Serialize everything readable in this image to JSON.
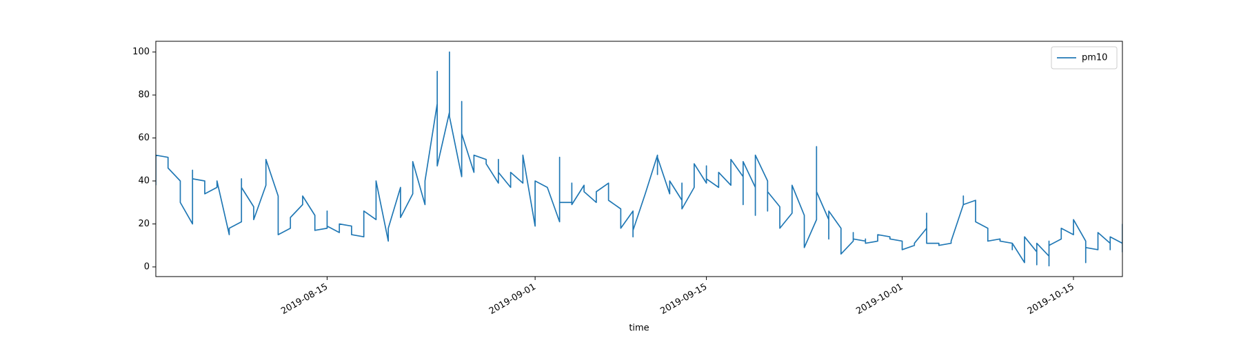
{
  "chart_data": {
    "type": "line",
    "xlabel": "time",
    "x": [
      "2019-08-01",
      "2019-08-01",
      "2019-08-02",
      "2019-08-02",
      "2019-08-03",
      "2019-08-03",
      "2019-08-04",
      "2019-08-04",
      "2019-08-04",
      "2019-08-05",
      "2019-08-05",
      "2019-08-06",
      "2019-08-06",
      "2019-08-07",
      "2019-08-07",
      "2019-08-08",
      "2019-08-08",
      "2019-08-08",
      "2019-08-08",
      "2019-08-09",
      "2019-08-09",
      "2019-08-10",
      "2019-08-10",
      "2019-08-11",
      "2019-08-11",
      "2019-08-12",
      "2019-08-12",
      "2019-08-13",
      "2019-08-13",
      "2019-08-14",
      "2019-08-14",
      "2019-08-15",
      "2019-08-15",
      "2019-08-15",
      "2019-08-16",
      "2019-08-16",
      "2019-08-17",
      "2019-08-17",
      "2019-08-18",
      "2019-08-18",
      "2019-08-19",
      "2019-08-19",
      "2019-08-20",
      "2019-08-20",
      "2019-08-21",
      "2019-08-21",
      "2019-08-22",
      "2019-08-22",
      "2019-08-23",
      "2019-08-23",
      "2019-08-24",
      "2019-08-24",
      "2019-08-24",
      "2019-08-25",
      "2019-08-25",
      "2019-08-25",
      "2019-08-26",
      "2019-08-26",
      "2019-08-26",
      "2019-08-27",
      "2019-08-27",
      "2019-08-28",
      "2019-08-28",
      "2019-08-29",
      "2019-08-29",
      "2019-08-29",
      "2019-08-30",
      "2019-08-30",
      "2019-08-31",
      "2019-08-31",
      "2019-09-01",
      "2019-09-01",
      "2019-09-02",
      "2019-09-03",
      "2019-09-03",
      "2019-09-03",
      "2019-09-04",
      "2019-09-04",
      "2019-09-04",
      "2019-09-05",
      "2019-09-05",
      "2019-09-06",
      "2019-09-06",
      "2019-09-07",
      "2019-09-07",
      "2019-09-08",
      "2019-09-08",
      "2019-09-09",
      "2019-09-09",
      "2019-09-09",
      "2019-09-10",
      "2019-09-11",
      "2019-09-11",
      "2019-09-11",
      "2019-09-12",
      "2019-09-12",
      "2019-09-13",
      "2019-09-13",
      "2019-09-13",
      "2019-09-14",
      "2019-09-14",
      "2019-09-15",
      "2019-09-15",
      "2019-09-15",
      "2019-09-16",
      "2019-09-16",
      "2019-09-17",
      "2019-09-17",
      "2019-09-18",
      "2019-09-18",
      "2019-09-18",
      "2019-09-19",
      "2019-09-19",
      "2019-09-19",
      "2019-09-20",
      "2019-09-20",
      "2019-09-20",
      "2019-09-21",
      "2019-09-21",
      "2019-09-21",
      "2019-09-21",
      "2019-09-22",
      "2019-09-22",
      "2019-09-22",
      "2019-09-23",
      "2019-09-23",
      "2019-09-24",
      "2019-09-24",
      "2019-09-24",
      "2019-09-25",
      "2019-09-25",
      "2019-09-25",
      "2019-09-26",
      "2019-09-26",
      "2019-09-26",
      "2019-09-27",
      "2019-09-27",
      "2019-09-27",
      "2019-09-28",
      "2019-09-28",
      "2019-09-28",
      "2019-09-29",
      "2019-09-29",
      "2019-09-30",
      "2019-09-30",
      "2019-10-01",
      "2019-10-01",
      "2019-10-02",
      "2019-10-02",
      "2019-10-03",
      "2019-10-03",
      "2019-10-03",
      "2019-10-04",
      "2019-10-04",
      "2019-10-04",
      "2019-10-05",
      "2019-10-05",
      "2019-10-05",
      "2019-10-06",
      "2019-10-06",
      "2019-10-06",
      "2019-10-07",
      "2019-10-07",
      "2019-10-08",
      "2019-10-08",
      "2019-10-08",
      "2019-10-09",
      "2019-10-09",
      "2019-10-10",
      "2019-10-10",
      "2019-10-10",
      "2019-10-11",
      "2019-10-11",
      "2019-10-12",
      "2019-10-12",
      "2019-10-12",
      "2019-10-13",
      "2019-10-13",
      "2019-10-13",
      "2019-10-13",
      "2019-10-14",
      "2019-10-14",
      "2019-10-14",
      "2019-10-15",
      "2019-10-15",
      "2019-10-16",
      "2019-10-16",
      "2019-10-16",
      "2019-10-16",
      "2019-10-17",
      "2019-10-17",
      "2019-10-18",
      "2019-10-18",
      "2019-10-18",
      "2019-10-19",
      "2019-10-19",
      "2019-10-19"
    ],
    "series": [
      {
        "name": "pm10",
        "color": "#1f77b4",
        "values": [
          38,
          52,
          51,
          46,
          40,
          30,
          20,
          45,
          41,
          40,
          34,
          37,
          40,
          15,
          18,
          21,
          41,
          30,
          37,
          28,
          22,
          38,
          50,
          33,
          15,
          18,
          23,
          29,
          33,
          24,
          17,
          18,
          26,
          19,
          16,
          20,
          19,
          15,
          14,
          26,
          22,
          40,
          12,
          18,
          37,
          23,
          34,
          49,
          29,
          40,
          76,
          91,
          47,
          72,
          100,
          70,
          42,
          77,
          62,
          44,
          52,
          50,
          48,
          39,
          50,
          44,
          37,
          44,
          39,
          52,
          19,
          40,
          37,
          21,
          51,
          30,
          30,
          39,
          29,
          38,
          35,
          30,
          35,
          39,
          31,
          27,
          18,
          26,
          14,
          17,
          34,
          52,
          43,
          51,
          34,
          40,
          31,
          39,
          27,
          37,
          48,
          39,
          47,
          41,
          37,
          44,
          38,
          50,
          42,
          29,
          49,
          37,
          24,
          52,
          40,
          26,
          35,
          28,
          21,
          26,
          18,
          25,
          27,
          38,
          24,
          9,
          22,
          56,
          35,
          22,
          13,
          26,
          18,
          12,
          6,
          12,
          16,
          13,
          12,
          13,
          11,
          12,
          15,
          14,
          13,
          12,
          8,
          10,
          11,
          18,
          25,
          11,
          11,
          11,
          10,
          11,
          12,
          12,
          29,
          33,
          29,
          31,
          21,
          18,
          12,
          12,
          13,
          12,
          11,
          8,
          11,
          2,
          14,
          7,
          1,
          11,
          5,
          0.5,
          12,
          10,
          13,
          14,
          18,
          15,
          22,
          12,
          2,
          11,
          9,
          8,
          16,
          11,
          8,
          14,
          11,
          7,
          20
        ]
      }
    ],
    "xlim": [
      "2019-08-01",
      "2019-10-19"
    ],
    "xticks": [
      "2019-08-15",
      "2019-09-01",
      "2019-09-15",
      "2019-10-01",
      "2019-10-15"
    ],
    "ylim": [
      -4.5,
      105
    ],
    "yticks": [
      0,
      20,
      40,
      60,
      80,
      100
    ],
    "legend": "upper right"
  }
}
